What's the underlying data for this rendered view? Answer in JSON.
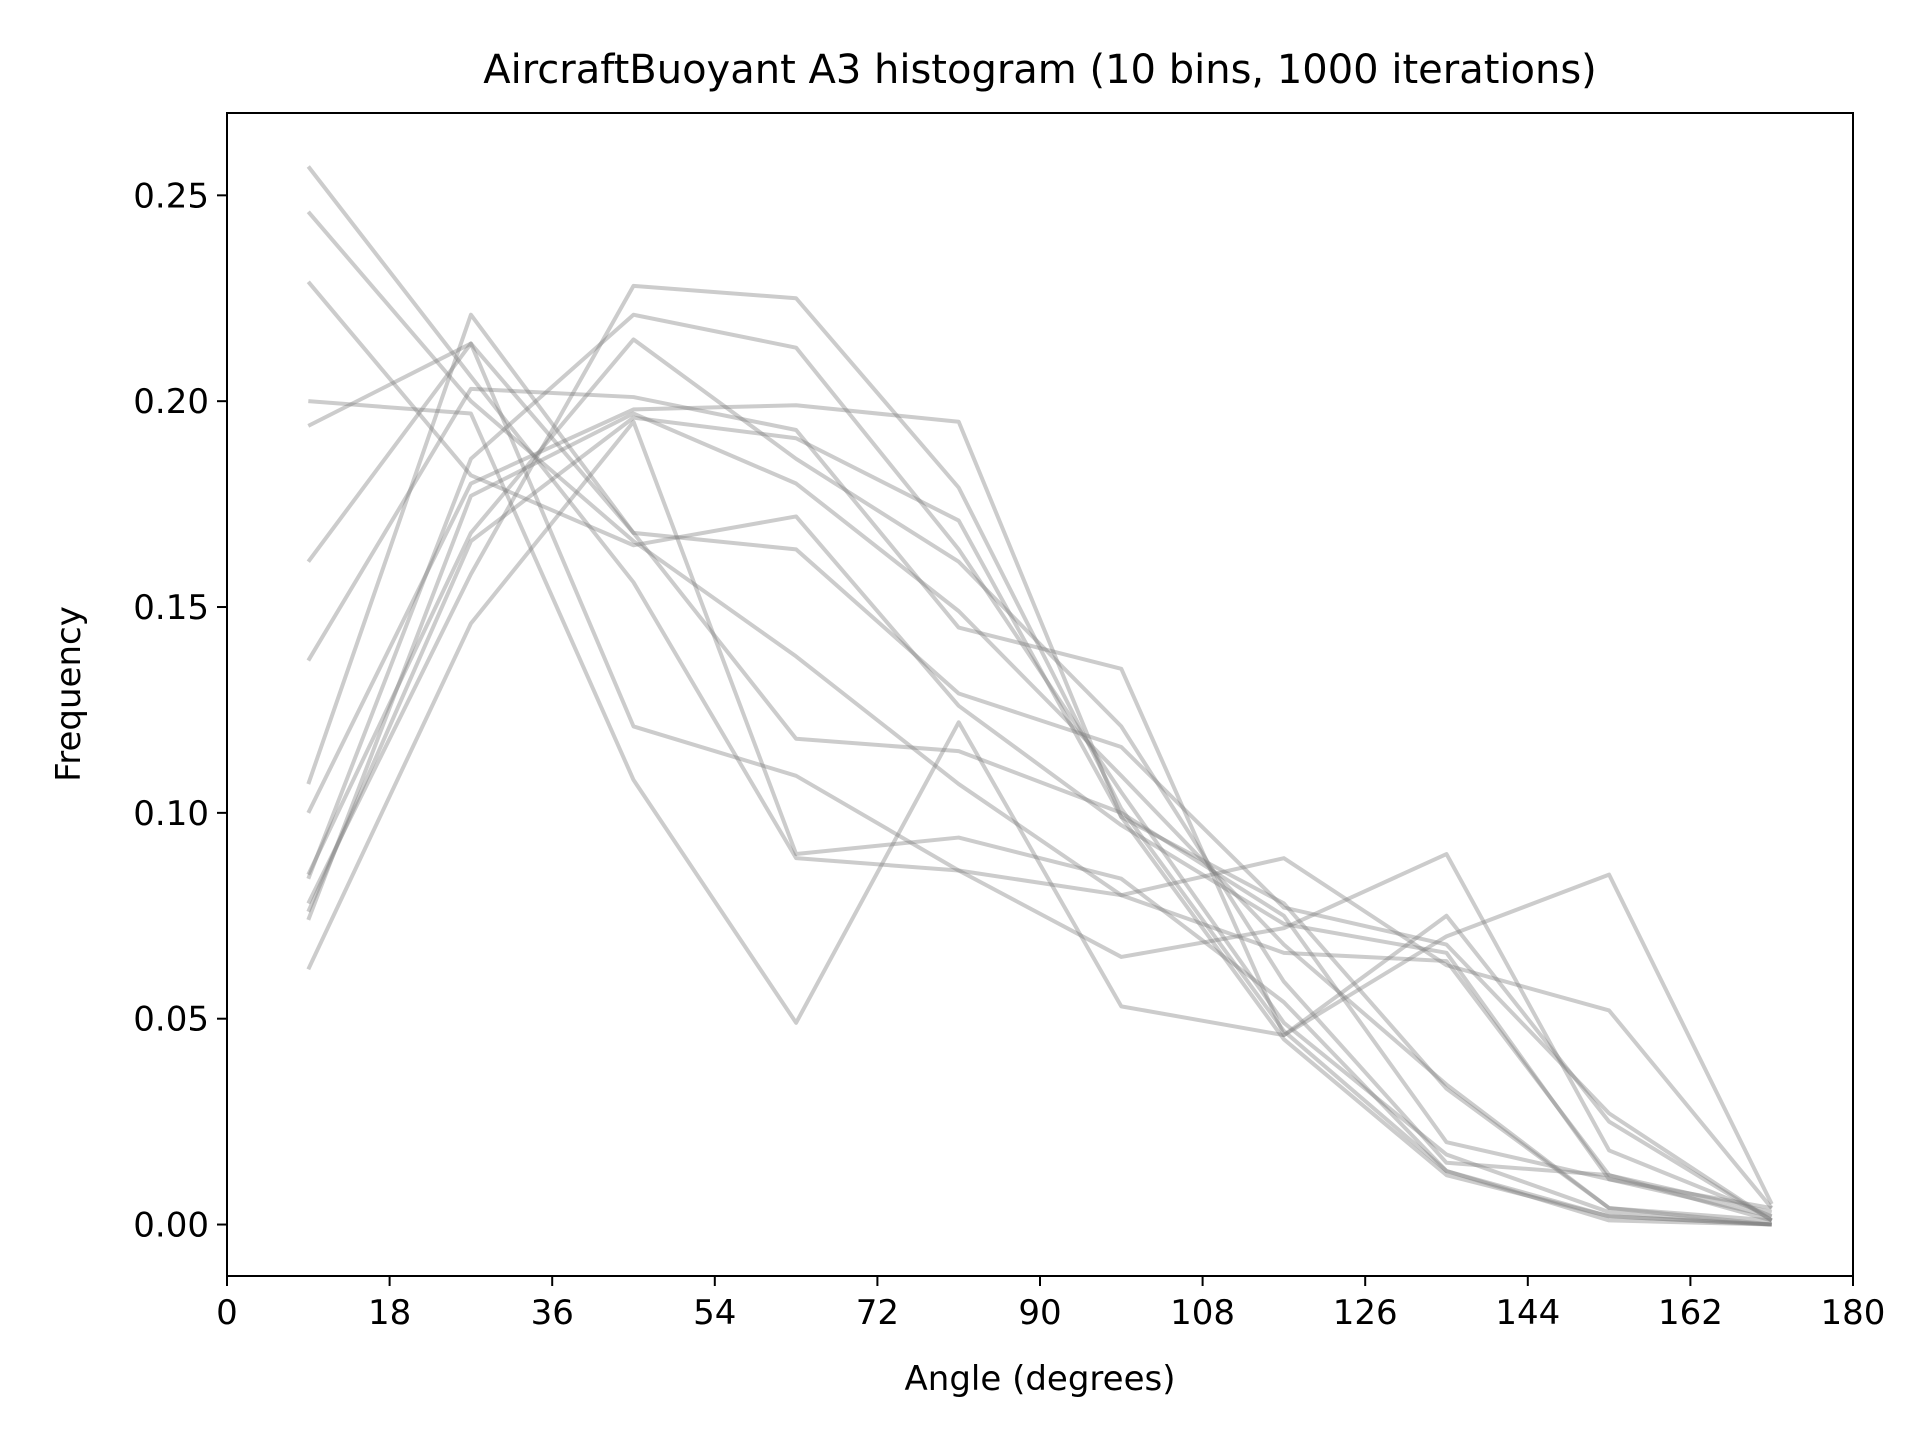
{
  "chart_data": {
    "type": "line",
    "title": "AircraftBuoyant A3 histogram (10 bins, 1000 iterations)",
    "xlabel": "Angle (degrees)",
    "ylabel": "Frequency",
    "xlim": [
      0,
      180
    ],
    "ylim": [
      -0.0125,
      0.27
    ],
    "xticks": [
      0,
      18,
      36,
      54,
      72,
      90,
      108,
      126,
      144,
      162,
      180
    ],
    "xtick_labels": [
      "0",
      "18",
      "36",
      "54",
      "72",
      "90",
      "108",
      "126",
      "144",
      "162",
      "180"
    ],
    "yticks": [
      0.0,
      0.05,
      0.1,
      0.15,
      0.2,
      0.25
    ],
    "ytick_labels": [
      "0.00",
      "0.05",
      "0.10",
      "0.15",
      "0.20",
      "0.25"
    ],
    "grid": false,
    "line_color": "#808080",
    "line_opacity": 0.4,
    "x": [
      9,
      27,
      45,
      63,
      81,
      99,
      117,
      135,
      153,
      171
    ],
    "series": [
      {
        "values": [
          0.257,
          0.206,
          0.156,
          0.089,
          0.086,
          0.08,
          0.089,
          0.063,
          0.052,
          0.004
        ]
      },
      {
        "values": [
          0.246,
          0.2,
          0.166,
          0.138,
          0.107,
          0.08,
          0.066,
          0.064,
          0.012,
          0.003
        ]
      },
      {
        "values": [
          0.229,
          0.182,
          0.165,
          0.172,
          0.126,
          0.097,
          0.073,
          0.066,
          0.011,
          0.002
        ]
      },
      {
        "values": [
          0.2,
          0.197,
          0.108,
          0.049,
          0.122,
          0.053,
          0.046,
          0.075,
          0.025,
          0.001
        ]
      },
      {
        "values": [
          0.194,
          0.214,
          0.121,
          0.109,
          0.086,
          0.065,
          0.072,
          0.09,
          0.018,
          0.002
        ]
      },
      {
        "values": [
          0.161,
          0.214,
          0.168,
          0.164,
          0.129,
          0.116,
          0.077,
          0.068,
          0.027,
          0.001
        ]
      },
      {
        "values": [
          0.137,
          0.203,
          0.201,
          0.193,
          0.145,
          0.135,
          0.046,
          0.07,
          0.085,
          0.005
        ]
      },
      {
        "values": [
          0.107,
          0.221,
          0.168,
          0.118,
          0.115,
          0.1,
          0.075,
          0.02,
          0.011,
          0.004
        ]
      },
      {
        "values": [
          0.1,
          0.18,
          0.198,
          0.199,
          0.195,
          0.099,
          0.078,
          0.033,
          0.004,
          0.001
        ]
      },
      {
        "values": [
          0.085,
          0.168,
          0.215,
          0.186,
          0.161,
          0.121,
          0.059,
          0.015,
          0.012,
          0.001
        ]
      },
      {
        "values": [
          0.084,
          0.186,
          0.221,
          0.213,
          0.164,
          0.105,
          0.049,
          0.017,
          0.003,
          0.0
        ]
      },
      {
        "values": [
          0.078,
          0.158,
          0.228,
          0.225,
          0.179,
          0.101,
          0.047,
          0.013,
          0.002,
          0.0
        ]
      },
      {
        "values": [
          0.076,
          0.166,
          0.196,
          0.191,
          0.171,
          0.099,
          0.045,
          0.012,
          0.002,
          0.0
        ]
      },
      {
        "values": [
          0.074,
          0.177,
          0.197,
          0.18,
          0.149,
          0.109,
          0.068,
          0.034,
          0.004,
          0.0
        ]
      },
      {
        "values": [
          0.062,
          0.146,
          0.195,
          0.09,
          0.094,
          0.084,
          0.054,
          0.013,
          0.001,
          0.0
        ]
      }
    ]
  }
}
